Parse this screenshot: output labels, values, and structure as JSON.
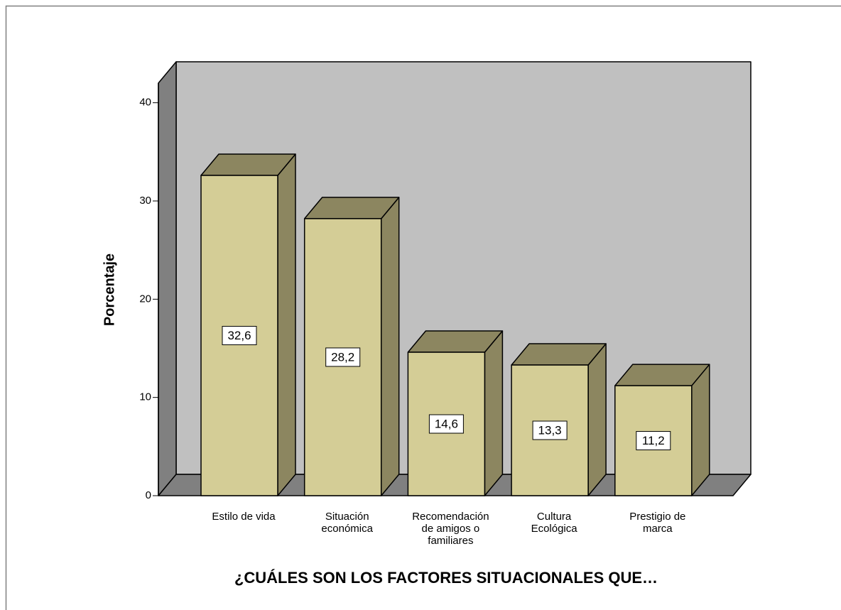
{
  "chart_data": {
    "type": "bar3d",
    "x_label": "¿CUÁLES SON LOS FACTORES SITUACIONALES QUE…",
    "y_label": "Porcentaje",
    "categories": [
      "Estilo de vida",
      "Situación económica",
      "Recomendación de amigos o familiares",
      "Cultura Ecológica",
      "Prestigio de marca"
    ],
    "values": [
      32.6,
      28.2,
      14.6,
      13.3,
      11.2
    ],
    "value_labels": [
      "32,6",
      "28,2",
      "14,6",
      "13,3",
      "11,2"
    ],
    "color": "#d4cd96",
    "ylim": [
      0,
      42
    ],
    "yticks": [
      0,
      10,
      20,
      30,
      40
    ]
  }
}
